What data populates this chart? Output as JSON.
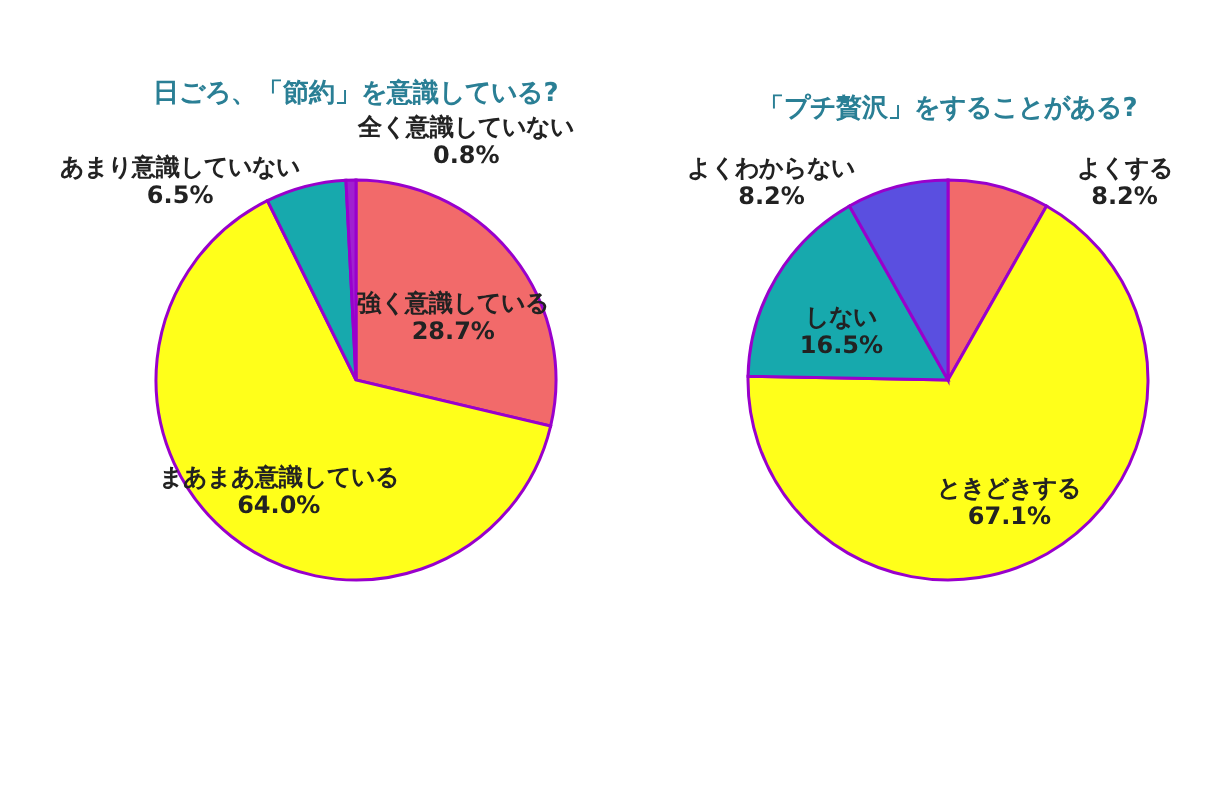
{
  "chart_data": [
    {
      "type": "pie",
      "title": "日ごろ、「節約」を意識している?",
      "categories": [
        "強く意識している",
        "まあまあ意識している",
        "あまり意識していない",
        "全く意識していない"
      ],
      "values": [
        28.7,
        64.0,
        6.5,
        0.8
      ],
      "value_labels": [
        "28.7%",
        "64.0%",
        "6.5%",
        "0.8%"
      ],
      "colors": [
        "#f26a6a",
        "#ffff1a",
        "#17a9ad",
        "#a020d0"
      ],
      "legend": false
    },
    {
      "type": "pie",
      "title": "「プチ贅沢」をすることがある?",
      "categories": [
        "よくする",
        "ときどきする",
        "しない",
        "よくわからない"
      ],
      "values": [
        8.2,
        67.1,
        16.5,
        8.2
      ],
      "value_labels": [
        "8.2%",
        "67.1%",
        "16.5%",
        "8.2%"
      ],
      "colors": [
        "#f26a6a",
        "#ffff1a",
        "#17a9ad",
        "#5a4fe0"
      ],
      "legend": false
    }
  ]
}
